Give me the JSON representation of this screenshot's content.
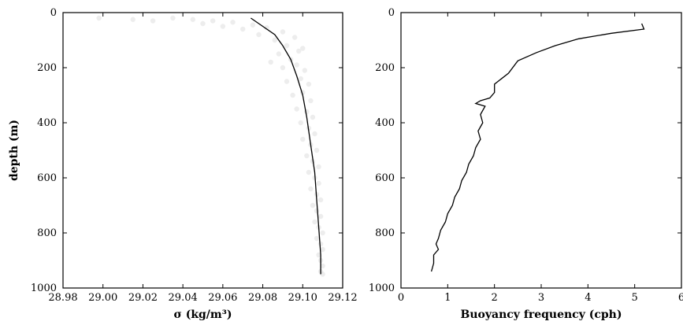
{
  "chart_data": [
    {
      "type": "scatter",
      "xlabel": "σ (kg/m³)",
      "ylabel": "depth (m)",
      "xlim": [
        28.98,
        29.12
      ],
      "ylim": [
        1000,
        0
      ],
      "y_inverted": true,
      "xticks": [
        "28.98",
        "29.00",
        "29.02",
        "29.04",
        "29.06",
        "29.08",
        "29.10",
        "29.12"
      ],
      "yticks": [
        "0",
        "200",
        "400",
        "600",
        "800",
        "1000"
      ],
      "grid": false,
      "series": [
        {
          "kind": "line",
          "color": "#000000",
          "x": [
            29.074,
            29.08,
            29.086,
            29.09,
            29.094,
            29.097,
            29.1,
            29.102,
            29.104,
            29.106,
            29.107,
            29.108,
            29.109,
            29.109
          ],
          "y": [
            20,
            50,
            80,
            120,
            170,
            230,
            300,
            380,
            480,
            580,
            680,
            780,
            880,
            950
          ]
        },
        {
          "kind": "scatter",
          "color": "#9a9a9a",
          "points": [
            [
              28.998,
              20
            ],
            [
              29.015,
              25
            ],
            [
              29.025,
              30
            ],
            [
              29.035,
              20
            ],
            [
              29.045,
              25
            ],
            [
              29.05,
              40
            ],
            [
              29.055,
              30
            ],
            [
              29.06,
              50
            ],
            [
              29.065,
              35
            ],
            [
              29.07,
              60
            ],
            [
              29.075,
              45
            ],
            [
              29.078,
              80
            ],
            [
              29.082,
              55
            ],
            [
              29.086,
              100
            ],
            [
              29.09,
              70
            ],
            [
              29.092,
              120
            ],
            [
              29.096,
              90
            ],
            [
              29.098,
              140
            ],
            [
              29.088,
              150
            ],
            [
              29.094,
              170
            ],
            [
              29.1,
              130
            ],
            [
              29.084,
              180
            ],
            [
              29.09,
              200
            ],
            [
              29.097,
              190
            ],
            [
              29.101,
              210
            ],
            [
              29.092,
              250
            ],
            [
              29.099,
              240
            ],
            [
              29.103,
              260
            ],
            [
              29.095,
              300
            ],
            [
              29.1,
              290
            ],
            [
              29.104,
              320
            ],
            [
              29.097,
              350
            ],
            [
              29.102,
              360
            ],
            [
              29.105,
              380
            ],
            [
              29.099,
              400
            ],
            [
              29.103,
              420
            ],
            [
              29.106,
              440
            ],
            [
              29.1,
              460
            ],
            [
              29.104,
              480
            ],
            [
              29.107,
              500
            ],
            [
              29.102,
              520
            ],
            [
              29.105,
              540
            ],
            [
              29.108,
              560
            ],
            [
              29.103,
              580
            ],
            [
              29.106,
              600
            ],
            [
              29.108,
              620
            ],
            [
              29.104,
              640
            ],
            [
              29.107,
              660
            ],
            [
              29.109,
              680
            ],
            [
              29.105,
              700
            ],
            [
              29.107,
              720
            ],
            [
              29.109,
              740
            ],
            [
              29.106,
              760
            ],
            [
              29.108,
              780
            ],
            [
              29.11,
              800
            ],
            [
              29.107,
              820
            ],
            [
              29.109,
              840
            ],
            [
              29.11,
              860
            ],
            [
              29.108,
              880
            ],
            [
              29.109,
              900
            ],
            [
              29.11,
              920
            ],
            [
              29.109,
              940
            ],
            [
              29.11,
              950
            ]
          ]
        }
      ]
    },
    {
      "type": "line",
      "xlabel": "Buoyancy frequency (cph)",
      "ylabel": "",
      "xlim": [
        0,
        6
      ],
      "ylim": [
        1000,
        0
      ],
      "y_inverted": true,
      "xticks": [
        "0",
        "1",
        "2",
        "3",
        "4",
        "5",
        "6"
      ],
      "yticks": [
        "0",
        "200",
        "400",
        "600",
        "800",
        "1000"
      ],
      "grid": false,
      "series": [
        {
          "color": "#000000",
          "x": [
            5.15,
            5.2,
            4.5,
            3.8,
            3.3,
            2.9,
            2.5,
            2.3,
            2.0,
            2.0,
            1.9,
            1.7,
            1.6,
            1.8,
            1.7,
            1.75,
            1.65,
            1.7,
            1.6,
            1.55,
            1.45,
            1.4,
            1.3,
            1.25,
            1.15,
            1.1,
            1.0,
            0.95,
            0.85,
            0.8,
            0.75,
            0.8,
            0.7,
            0.7,
            0.65
          ],
          "y": [
            40,
            60,
            75,
            95,
            120,
            145,
            175,
            220,
            260,
            290,
            310,
            320,
            330,
            340,
            370,
            400,
            430,
            460,
            490,
            520,
            550,
            580,
            610,
            640,
            670,
            700,
            730,
            760,
            790,
            820,
            840,
            860,
            880,
            910,
            940
          ]
        }
      ]
    }
  ]
}
